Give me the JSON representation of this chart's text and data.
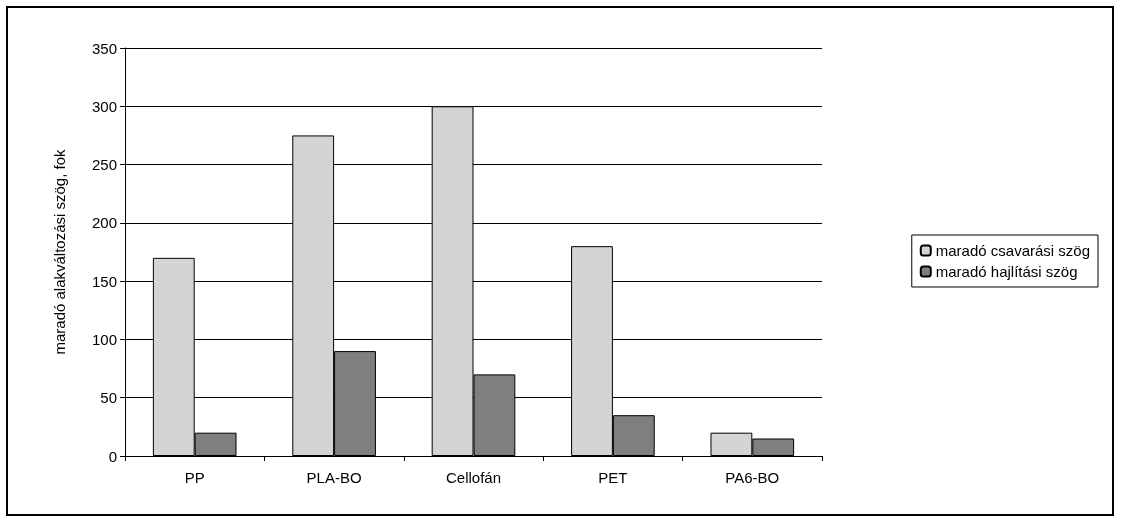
{
  "chart_data": {
    "type": "bar",
    "ylabel": "maradó alakváltozási szög, fok",
    "categories": [
      "PP",
      "PLA-BO",
      "Cellofán",
      "PET",
      "PA6-BO"
    ],
    "series": [
      {
        "name": "maradó csavarási szög",
        "color": "#d4d4d4",
        "values": [
          170,
          275,
          300,
          180,
          20
        ]
      },
      {
        "name": "maradó hajlítási szög",
        "color": "#7f7f7f",
        "values": [
          20,
          90,
          70,
          35,
          15
        ]
      }
    ],
    "ylim": [
      0,
      350
    ],
    "yticks": [
      0,
      50,
      100,
      150,
      200,
      250,
      300,
      350
    ],
    "grid": "y",
    "legend": "right"
  }
}
